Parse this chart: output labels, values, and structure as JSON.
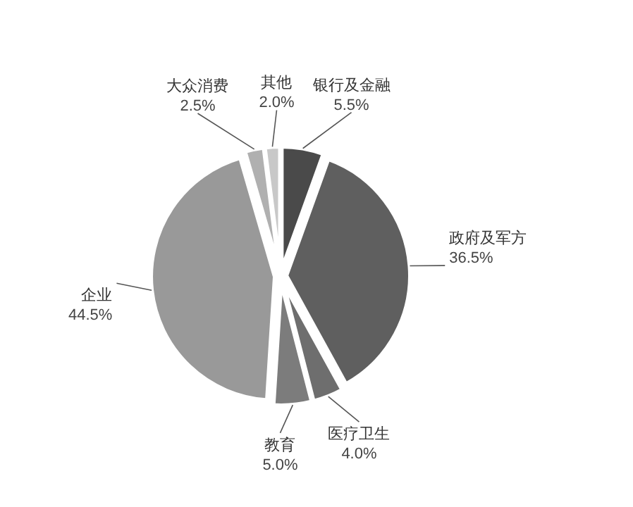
{
  "chart_data": {
    "type": "pie",
    "categories": [
      "银行及金融",
      "政府及军方",
      "医疗卫生",
      "教育",
      "企业",
      "大众消费",
      "其他"
    ],
    "values": [
      5.5,
      36.5,
      4.0,
      5.0,
      44.5,
      2.5,
      2.0
    ],
    "value_labels": [
      "5.5%",
      "36.5%",
      "4.0%",
      "5.0%",
      "44.5%",
      "2.5%",
      "2.0%"
    ],
    "colors": [
      "#4a4a4a",
      "#5f5f5f",
      "#6e6e6e",
      "#7c7c7c",
      "#999999",
      "#b0b0b0",
      "#c8c8c8"
    ]
  }
}
